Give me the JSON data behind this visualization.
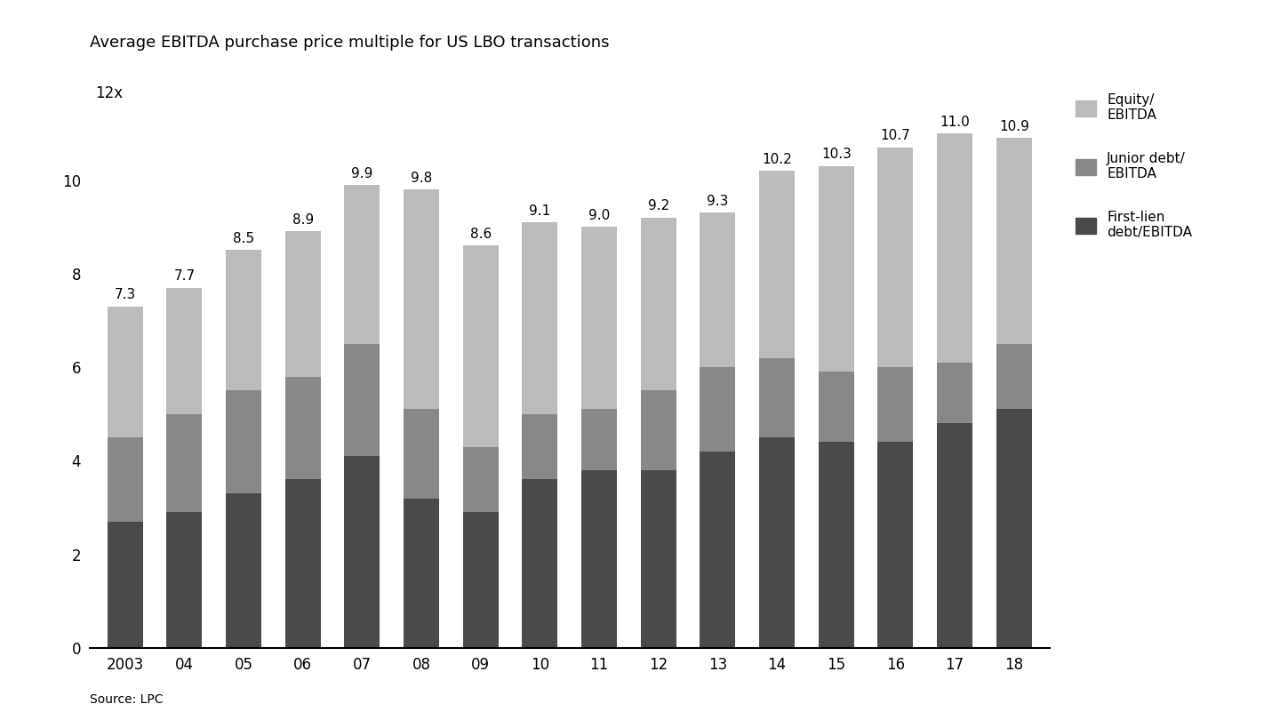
{
  "title": "Average EBITDA purchase price multiple for US LBO transactions",
  "categories": [
    "2003",
    "04",
    "05",
    "06",
    "07",
    "08",
    "09",
    "10",
    "11",
    "12",
    "13",
    "14",
    "15",
    "16",
    "17",
    "18"
  ],
  "totals": [
    7.3,
    7.7,
    8.5,
    8.9,
    9.9,
    9.8,
    8.6,
    9.1,
    9.0,
    9.2,
    9.3,
    10.2,
    10.3,
    10.7,
    11.0,
    10.9
  ],
  "first_lien": [
    2.7,
    2.9,
    3.3,
    3.6,
    4.1,
    3.2,
    2.9,
    3.6,
    3.8,
    3.8,
    4.2,
    4.5,
    4.4,
    4.4,
    4.8,
    5.1
  ],
  "junior_debt": [
    1.8,
    2.1,
    2.2,
    2.2,
    2.4,
    1.9,
    1.4,
    1.4,
    1.3,
    1.7,
    1.8,
    1.7,
    1.5,
    1.6,
    1.3,
    1.4
  ],
  "color_first_lien": "#4a4a4a",
  "color_junior_debt": "#888888",
  "color_equity": "#bbbbbb",
  "ylim": [
    0,
    12
  ],
  "yticks": [
    0,
    2,
    4,
    6,
    8,
    10
  ],
  "source": "Source: LPC",
  "bar_width": 0.6,
  "background_color": "#ffffff"
}
